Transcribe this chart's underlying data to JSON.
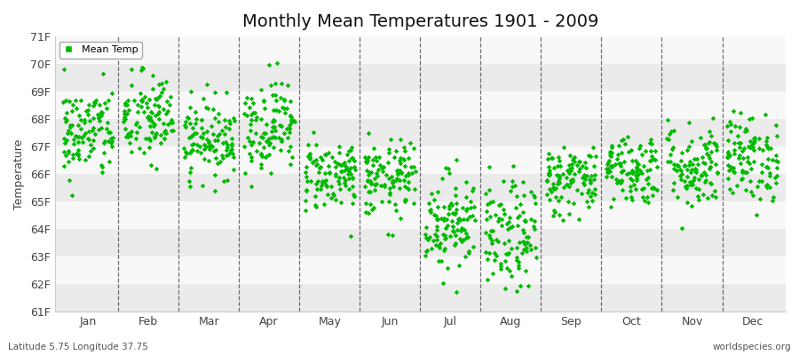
{
  "title": "Monthly Mean Temperatures 1901 - 2009",
  "ylabel": "Temperature",
  "xlabel_bottom_left": "Latitude 5.75 Longitude 37.75",
  "xlabel_bottom_right": "worldspecies.org",
  "legend_label": "Mean Temp",
  "marker_color": "#00bb00",
  "marker_size": 8,
  "ylim": [
    61,
    71
  ],
  "yticks": [
    61,
    62,
    63,
    64,
    65,
    66,
    67,
    68,
    69,
    70,
    71
  ],
  "ytick_labels": [
    "61F",
    "62F",
    "63F",
    "64F",
    "65F",
    "66F",
    "67F",
    "68F",
    "69F",
    "70F",
    "71F"
  ],
  "months": [
    "Jan",
    "Feb",
    "Mar",
    "Apr",
    "May",
    "Jun",
    "Jul",
    "Aug",
    "Sep",
    "Oct",
    "Nov",
    "Dec"
  ],
  "background_color": "#ffffff",
  "plot_bg_color": "#ffffff",
  "band_colors": [
    "#ebebeb",
    "#f8f8f8"
  ],
  "n_years": 109,
  "month_means": [
    67.5,
    68.0,
    67.3,
    67.8,
    66.0,
    65.8,
    64.3,
    63.7,
    65.8,
    66.2,
    66.3,
    66.6
  ],
  "month_stds": [
    0.85,
    0.85,
    0.7,
    0.85,
    0.65,
    0.7,
    0.9,
    1.0,
    0.65,
    0.65,
    0.8,
    0.8
  ],
  "seed": 42,
  "title_fontsize": 14,
  "tick_fontsize": 9,
  "label_fontsize": 9
}
